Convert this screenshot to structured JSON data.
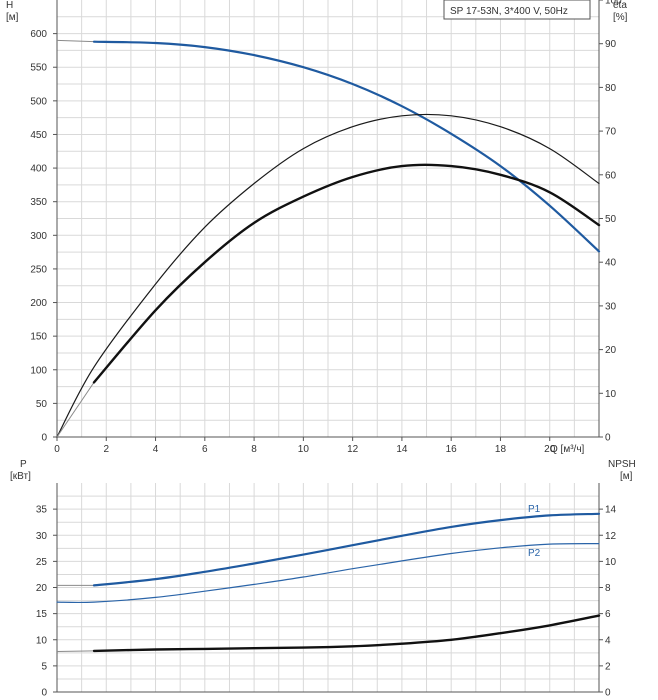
{
  "chart_data": [
    {
      "type": "line",
      "legend_box": "SP 17-53N, 3*400 V, 50Hz",
      "left_axis": {
        "label_line1": "H",
        "label_line2": "[м]",
        "ylim": [
          0,
          650
        ],
        "ticks": [
          "0",
          "50",
          "100",
          "150",
          "200",
          "250",
          "300",
          "350",
          "400",
          "450",
          "500",
          "550",
          "600"
        ]
      },
      "right_axis": {
        "label_line1": "eta",
        "label_line2": "[%]",
        "ylim": [
          0,
          100
        ],
        "ticks": [
          "0",
          "10",
          "20",
          "30",
          "40",
          "50",
          "60",
          "70",
          "80",
          "90",
          "100"
        ]
      },
      "x_axis": {
        "label": "Q [м³/ч]",
        "xlim": [
          0,
          22
        ],
        "ticks": [
          "0",
          "2",
          "4",
          "6",
          "8",
          "10",
          "12",
          "14",
          "16",
          "18",
          "20"
        ]
      },
      "grid": true,
      "series": [
        {
          "id": "head",
          "axis": "left",
          "color": "#1f5aa0",
          "width": 2.2,
          "x": [
            1.5,
            4,
            6,
            8,
            10,
            12,
            14,
            16,
            18,
            20,
            22
          ],
          "y": [
            588,
            586,
            580,
            568,
            550,
            525,
            492,
            451,
            403,
            344,
            276
          ],
          "ext_x": [
            0,
            1.5
          ],
          "ext_y": [
            590,
            588
          ]
        },
        {
          "id": "eta",
          "axis": "right",
          "color": "#1a1a1a",
          "width": 1.2,
          "x": [
            0,
            1.5,
            4,
            6,
            8,
            10,
            12,
            14,
            16,
            18,
            20,
            22
          ],
          "y": [
            0,
            16,
            35,
            48,
            58,
            66,
            71,
            73.5,
            73.5,
            71,
            66,
            58
          ]
        },
        {
          "id": "eta_total",
          "axis": "right",
          "color": "#111111",
          "width": 2.4,
          "x": [
            1.5,
            4,
            6,
            8,
            10,
            12,
            14,
            16,
            18,
            20,
            22
          ],
          "y": [
            12.5,
            29,
            40,
            49,
            55,
            59.5,
            62,
            62,
            60,
            56,
            48.5
          ],
          "ext_x": [
            0,
            1.5
          ],
          "ext_y": [
            0,
            12.5
          ]
        }
      ]
    },
    {
      "type": "line",
      "left_axis": {
        "label_line1": "P",
        "label_line2": "[кВт]",
        "ylim": [
          0,
          40
        ],
        "ticks": [
          "0",
          "5",
          "10",
          "15",
          "20",
          "25",
          "30",
          "35"
        ]
      },
      "right_axis": {
        "label_line1": "NPSH",
        "label_line2": "[м]",
        "ylim": [
          0,
          16
        ],
        "ticks": [
          "0",
          "2",
          "4",
          "6",
          "8",
          "10",
          "12",
          "14"
        ]
      },
      "x_axis": {
        "xlim": [
          0,
          22
        ]
      },
      "grid": true,
      "series": [
        {
          "id": "p1",
          "name": "P1",
          "axis": "left",
          "color": "#1f5aa0",
          "width": 2.2,
          "x": [
            1.5,
            4,
            6,
            8,
            10,
            12,
            14,
            16,
            18,
            20,
            22
          ],
          "y": [
            20.4,
            21.6,
            23.0,
            24.6,
            26.3,
            28.1,
            29.9,
            31.6,
            32.9,
            33.8,
            34.1
          ],
          "ext_x": [
            0,
            1.5
          ],
          "ext_y": [
            20.4,
            20.4
          ]
        },
        {
          "id": "p2",
          "name": "P2",
          "axis": "left",
          "color": "#2a64a8",
          "width": 1.2,
          "x": [
            0,
            1.5,
            4,
            6,
            8,
            10,
            12,
            14,
            16,
            18,
            20,
            22
          ],
          "y": [
            17.2,
            17.2,
            18.1,
            19.3,
            20.6,
            22.0,
            23.6,
            25.1,
            26.5,
            27.6,
            28.3,
            28.4
          ]
        },
        {
          "id": "npsh",
          "axis": "right",
          "color": "#111111",
          "width": 2.4,
          "x": [
            1.5,
            4,
            6,
            8,
            10,
            12,
            14,
            16,
            18,
            20,
            22
          ],
          "y": [
            3.15,
            3.25,
            3.3,
            3.35,
            3.4,
            3.5,
            3.7,
            4.0,
            4.5,
            5.1,
            5.85
          ],
          "ext_x": [
            0,
            1.5
          ],
          "ext_y": [
            3.1,
            3.15
          ]
        }
      ]
    }
  ]
}
